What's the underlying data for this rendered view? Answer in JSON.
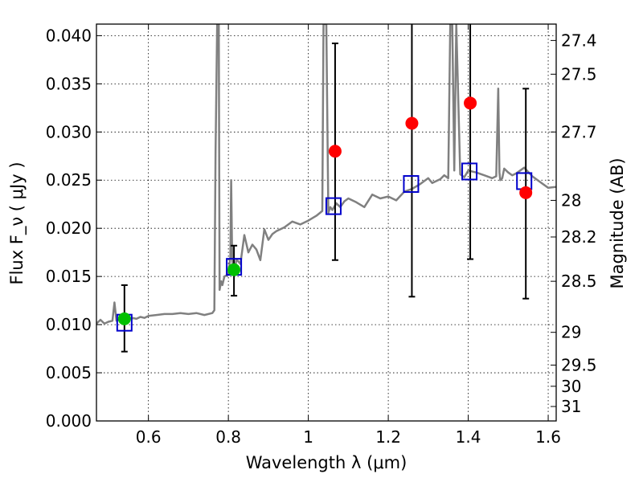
{
  "chart_data": {
    "type": "scatter",
    "xlabel": "Wavelength  λ (μm)",
    "ylabel": "Flux  F_ν  ( μJy )",
    "ylabel_right": "Magnitude (AB)",
    "xlim": [
      0.47,
      1.62
    ],
    "ylim": [
      0.0,
      0.0412
    ],
    "grid": true,
    "x_ticks": [
      0.6,
      0.8,
      1.0,
      1.2,
      1.4,
      1.6
    ],
    "x_tick_labels": [
      "0.6",
      "0.8",
      "1",
      "1.2",
      "1.4",
      "1.6"
    ],
    "y_ticks": [
      0.0,
      0.005,
      0.01,
      0.015,
      0.02,
      0.025,
      0.03,
      0.035,
      0.04
    ],
    "y_tick_labels": [
      "0.000",
      "0.005",
      "0.010",
      "0.015",
      "0.020",
      "0.025",
      "0.030",
      "0.035",
      "0.040"
    ],
    "right_ticks": [
      {
        "label": "27.4",
        "flux": 0.0395
      },
      {
        "label": "27.5",
        "flux": 0.036
      },
      {
        "label": "27.7",
        "flux": 0.03
      },
      {
        "label": "28",
        "flux": 0.0229
      },
      {
        "label": "28.2",
        "flux": 0.0191
      },
      {
        "label": "28.5",
        "flux": 0.0145
      },
      {
        "label": "29",
        "flux": 0.0092
      },
      {
        "label": "29.5",
        "flux": 0.0058
      },
      {
        "label": "30",
        "flux": 0.0036
      },
      {
        "label": "31",
        "flux": 0.0015
      }
    ],
    "series": [
      {
        "name": "model spectrum",
        "kind": "line",
        "color": "#808080",
        "x": [
          0.47,
          0.48,
          0.49,
          0.5,
          0.51,
          0.515,
          0.52,
          0.53,
          0.54,
          0.55,
          0.56,
          0.57,
          0.58,
          0.59,
          0.6,
          0.62,
          0.64,
          0.66,
          0.68,
          0.7,
          0.72,
          0.74,
          0.76,
          0.765,
          0.768,
          0.772,
          0.776,
          0.778,
          0.782,
          0.785,
          0.79,
          0.8,
          0.805,
          0.807,
          0.809,
          0.811,
          0.815,
          0.82,
          0.83,
          0.84,
          0.85,
          0.86,
          0.87,
          0.88,
          0.89,
          0.9,
          0.91,
          0.92,
          0.94,
          0.96,
          0.98,
          1.0,
          1.02,
          1.035,
          1.038,
          1.04,
          1.045,
          1.05,
          1.055,
          1.06,
          1.07,
          1.08,
          1.09,
          1.1,
          1.12,
          1.14,
          1.16,
          1.18,
          1.2,
          1.22,
          1.24,
          1.26,
          1.28,
          1.3,
          1.31,
          1.32,
          1.33,
          1.34,
          1.35,
          1.355,
          1.36,
          1.365,
          1.37,
          1.38,
          1.39,
          1.4,
          1.42,
          1.44,
          1.46,
          1.47,
          1.475,
          1.478,
          1.48,
          1.485,
          1.49,
          1.5,
          1.51,
          1.52,
          1.54,
          1.56,
          1.58,
          1.6,
          1.62
        ],
        "y": [
          0.0101,
          0.0105,
          0.0101,
          0.0103,
          0.0104,
          0.0123,
          0.0104,
          0.0106,
          0.0103,
          0.0105,
          0.0107,
          0.0106,
          0.0108,
          0.0107,
          0.0109,
          0.011,
          0.0111,
          0.0111,
          0.0112,
          0.0111,
          0.0112,
          0.011,
          0.0112,
          0.0115,
          0.028,
          0.042,
          0.042,
          0.0136,
          0.0145,
          0.0141,
          0.015,
          0.0152,
          0.017,
          0.025,
          0.0185,
          0.0155,
          0.0152,
          0.0168,
          0.0163,
          0.0193,
          0.0175,
          0.0183,
          0.0178,
          0.0167,
          0.0199,
          0.0188,
          0.0194,
          0.0197,
          0.0201,
          0.0207,
          0.0204,
          0.0208,
          0.0213,
          0.0218,
          0.042,
          0.042,
          0.042,
          0.0216,
          0.0222,
          0.0219,
          0.0226,
          0.0222,
          0.0228,
          0.0231,
          0.0227,
          0.0222,
          0.0235,
          0.0231,
          0.0233,
          0.0229,
          0.0238,
          0.0241,
          0.0246,
          0.0252,
          0.0247,
          0.0249,
          0.0251,
          0.0255,
          0.0252,
          0.042,
          0.042,
          0.026,
          0.042,
          0.0256,
          0.0253,
          0.026,
          0.0258,
          0.0255,
          0.0252,
          0.0254,
          0.0345,
          0.0258,
          0.025,
          0.0252,
          0.0262,
          0.0258,
          0.0255,
          0.0257,
          0.0263,
          0.0254,
          0.0248,
          0.0242,
          0.0243
        ]
      },
      {
        "name": "green observed points",
        "kind": "points",
        "color": "#00c000",
        "x": [
          0.54,
          0.814
        ],
        "y": [
          0.0106,
          0.0157
        ],
        "yerr_low": [
          0.0072,
          0.013
        ],
        "yerr_high": [
          0.0141,
          0.0182
        ]
      },
      {
        "name": "red observed points",
        "kind": "points",
        "color": "#ff0000",
        "x": [
          1.067,
          1.259,
          1.405,
          1.544
        ],
        "y": [
          0.028,
          0.0309,
          0.033,
          0.0237
        ],
        "yerr_low": [
          0.0167,
          0.0129,
          0.0168,
          0.0127
        ],
        "yerr_high": [
          0.0392,
          0.0412,
          0.0412,
          0.0345
        ]
      },
      {
        "name": "model synthetic photometry",
        "kind": "open-squares",
        "color": "#0000cc",
        "x": [
          0.54,
          0.814,
          1.063,
          1.257,
          1.403,
          1.54
        ],
        "y": [
          0.0102,
          0.016,
          0.0223,
          0.0246,
          0.0259,
          0.0249
        ]
      }
    ]
  }
}
